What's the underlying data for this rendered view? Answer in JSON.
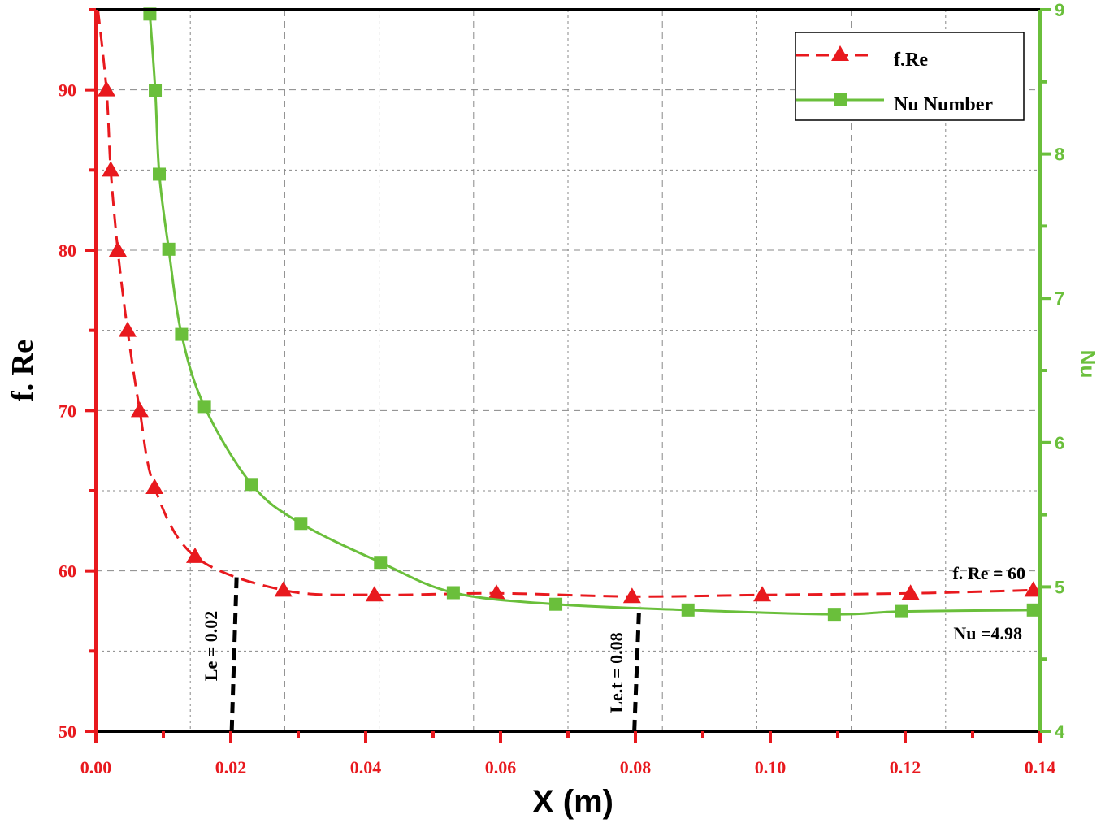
{
  "chart_data": {
    "type": "line",
    "xlabel": "X (m)",
    "ylabel_left": "f. Re",
    "ylabel_right": "Nu",
    "xlim": [
      0,
      0.14
    ],
    "ylim_left": [
      50,
      95
    ],
    "ylim_right": [
      4,
      9
    ],
    "x_ticks": [
      "0.00",
      "0.02",
      "0.04",
      "0.06",
      "0.08",
      "0.10",
      "0.12",
      "0.14"
    ],
    "y_left_ticks": [
      "50",
      "60",
      "70",
      "80",
      "90"
    ],
    "y_right_ticks": [
      "4",
      "5",
      "6",
      "7",
      "8",
      "9"
    ],
    "grid": true,
    "legend": "top-right",
    "colors": {
      "fre": "#e8191e",
      "nu": "#6abf3b",
      "annot": "#000000"
    },
    "series": [
      {
        "name": "f.Re",
        "axis": "left",
        "marker": "triangle",
        "style": "dashed",
        "x": [
          0.0003,
          0.00157,
          0.0022,
          0.00325,
          0.0047,
          0.0065,
          0.0087,
          0.0147,
          0.0278,
          0.0413,
          0.0594,
          0.0795,
          0.0988,
          0.1208,
          0.139
        ],
        "y": [
          95,
          90,
          85,
          80,
          75,
          70,
          65.2,
          60.9,
          58.8,
          58.5,
          58.6,
          58.4,
          58.5,
          58.6,
          58.8
        ],
        "marker_from": 1
      },
      {
        "name": "Nu Number",
        "axis": "right",
        "marker": "square",
        "style": "solid",
        "x": [
          0.008,
          0.0088,
          0.0094,
          0.0108,
          0.0127,
          0.0161,
          0.0231,
          0.0304,
          0.0422,
          0.053,
          0.0682,
          0.0878,
          0.1095,
          0.1195,
          0.139
        ],
        "y": [
          8.97,
          8.44,
          7.86,
          7.34,
          6.75,
          6.25,
          5.71,
          5.44,
          5.17,
          4.96,
          4.88,
          4.84,
          4.81,
          4.83,
          4.84
        ],
        "marker_from": 0
      }
    ],
    "annotations": [
      {
        "text": "Le = 0.02",
        "x": 0.0205,
        "y_top": 59.6
      },
      {
        "text": "Le.t = 0.08",
        "x": 0.0802,
        "y_top": 57.8
      },
      {
        "text": "f. Re = 60"
      },
      {
        "text": "Nu =4.98"
      }
    ]
  }
}
